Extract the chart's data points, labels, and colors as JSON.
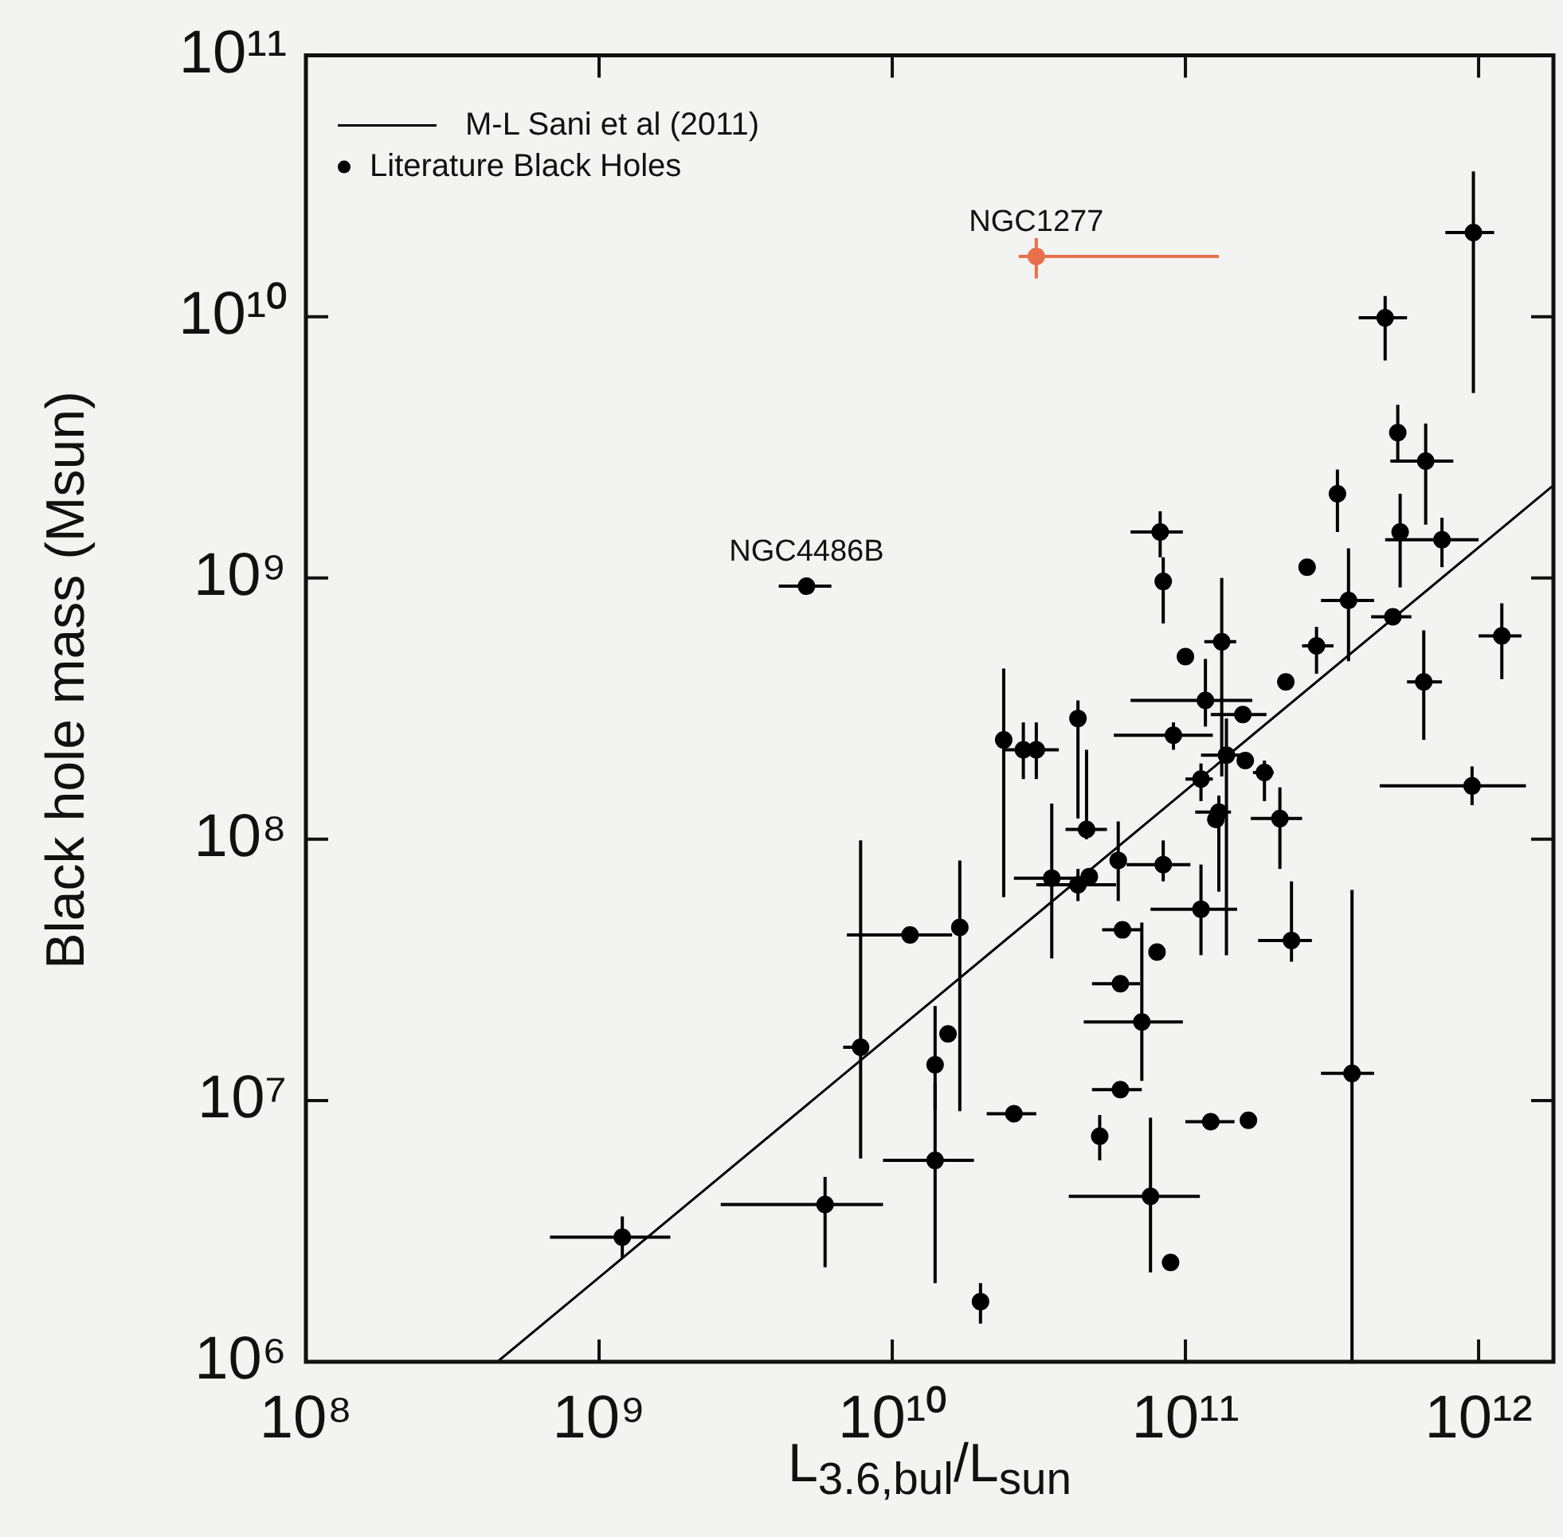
{
  "chart_data": {
    "type": "scatter",
    "xlabel": "L$_{3.6,bul}$/L$_{sun}$",
    "ylabel": "Black hole mass (Msun)",
    "log": "xy",
    "grid": false,
    "legend": "top left",
    "xlim": [
      100000000.0,
      1800000000000.0
    ],
    "ylim": [
      1000000.0,
      100000000000.0
    ],
    "xticks": [
      {
        "value": 100000000.0,
        "label": "10⁸"
      },
      {
        "value": 1000000000.0,
        "label": "10⁹"
      },
      {
        "value": 10000000000.0,
        "label": "10¹⁰"
      },
      {
        "value": 100000000000.0,
        "label": "10¹¹"
      },
      {
        "value": 1000000000000.0,
        "label": "10¹²"
      }
    ],
    "yticks": [
      {
        "value": 1000000.0,
        "label": "10⁶"
      },
      {
        "value": 10000000.0,
        "label": "10⁷"
      },
      {
        "value": 100000000.0,
        "label": "10⁸"
      },
      {
        "value": 1000000000.0,
        "label": "10⁹"
      },
      {
        "value": 10000000000.0,
        "label": "10¹⁰"
      },
      {
        "value": 100000000000.0,
        "label": "10¹¹"
      }
    ],
    "annotations": [
      {
        "text": "NGC1277",
        "x": 31000000000.0,
        "y": 17000000000.0
      },
      {
        "text": "NGC4486B",
        "x": 5100000000.0,
        "y": 930000000.0
      }
    ],
    "series": [
      {
        "name": "M-L Sani et al (2011)",
        "type": "line",
        "line_style": "solid",
        "marker": "none",
        "color": "#000000",
        "x": [
          450000000.0,
          1780000000000.0
        ],
        "values": [
          1000000.0,
          2240000000.0
        ]
      },
      {
        "name": "Literature Black Holes",
        "marker": "circle",
        "color": "#000000",
        "x": [
          960000000000.0,
          480000000000.0,
          530000000000.0,
          660000000000.0,
          330000000000.0,
          540000000000.0,
          750000000000.0,
          82000000000.0,
          84000000000.0,
          260000000000.0,
          360000000000.0,
          510000000000.0,
          1200000000000.0,
          650000000000.0,
          950000000000.0,
          280000000000.0,
          220000000000.0,
          133000000000.0,
          100000000000.0,
          117000000000.0,
          157000000000.0,
          91000000000.0,
          138000000000.0,
          160000000000.0,
          186000000000.0,
          113000000000.0,
          130000000000.0,
          127000000000.0,
          210000000000.0,
          43000000000.0,
          46000000000.0,
          24000000000.0,
          28000000000.0,
          31000000000.0,
          35000000000.0,
          43000000000.0,
          47000000000.0,
          59000000000.0,
          84000000000.0,
          113000000000.0,
          230000000000.0,
          61000000000.0,
          80000000000.0,
          17000000000.0,
          11500000000.0,
          7800000000.0,
          15500000000.0,
          14000000000.0,
          14000000000.0,
          5900000000.0,
          1200000000.0,
          20000000000.0,
          60000000000.0,
          71000000000.0,
          60000000000.0,
          26000000000.0,
          51000000000.0,
          76000000000.0,
          89000000000.0,
          122000000000.0,
          164000000000.0,
          370000000000.0,
          5100000000.0
        ],
        "values": [
          21000000000.0,
          9900000000.0,
          3600000000.0,
          2800000000.0,
          2100000000.0,
          1500000000.0,
          1400000000.0,
          1500000000.0,
          970000000.0,
          1100000000.0,
          820000000.0,
          710000000.0,
          600000000.0,
          400000000.0,
          160000000.0,
          550000000.0,
          400000000.0,
          570000000.0,
          500000000.0,
          340000000.0,
          300000000.0,
          250000000.0,
          210000000.0,
          200000000.0,
          180000000.0,
          170000000.0,
          127000000.0,
          119000000.0,
          120000000.0,
          290000000.0,
          109000000.0,
          240000000.0,
          220000000.0,
          220000000.0,
          71000000.0,
          67000000.0,
          72000000.0,
          83000000.0,
          80000000.0,
          54000000.0,
          41000000.0,
          45000000.0,
          37000000.0,
          46000000.0,
          43000000.0,
          16000000.0,
          18000000.0,
          13700000.0,
          5900000.0,
          4000000.0,
          3000000.0,
          1700000.0,
          28000000.0,
          20000000.0,
          11000000.0,
          8900000.0,
          7300000.0,
          4300000.0,
          2400000.0,
          8300000.0,
          8400000.0,
          12700000.0,
          930000000.0
        ],
        "xerrors": [
          [
            770000000000.0,
            1130000000000.0
          ],
          [
            390000000000.0,
            570000000000.0
          ],
          null,
          [
            500000000000.0,
            820000000000.0
          ],
          null,
          null,
          [
            480000000000.0,
            1000000000000.0
          ],
          [
            65000000000.0,
            98000000000.0
          ],
          null,
          null,
          [
            290000000000.0,
            440000000000.0
          ],
          [
            430000000000.0,
            590000000000.0
          ],
          [
            1000000000000.0,
            1400000000000.0
          ],
          [
            570000000000.0,
            750000000000.0
          ],
          [
            460000000000.0,
            1450000000000.0
          ],
          [
            250000000000.0,
            320000000000.0
          ],
          null,
          [
            116000000000.0,
            149000000000.0
          ],
          null,
          [
            65000000000.0,
            169000000000.0
          ],
          [
            122000000000.0,
            189000000000.0
          ],
          [
            57000000000.0,
            124000000000.0
          ],
          [
            113000000000.0,
            164000000000.0
          ],
          null,
          [
            170000000000.0,
            200000000000.0
          ],
          [
            100000000000.0,
            124000000000.0
          ],
          [
            108000000000.0,
            143000000000.0
          ],
          null,
          [
            167000000000.0,
            250000000000.0
          ],
          null,
          [
            39000000000.0,
            54000000000.0
          ],
          null,
          null,
          [
            24000000000.0,
            37000000000.0
          ],
          [
            26000000000.0,
            42000000000.0
          ],
          [
            31000000000.0,
            58000000000.0
          ],
          null,
          null,
          [
            63000000000.0,
            104000000000.0
          ],
          [
            76000000000.0,
            150000000000.0
          ],
          [
            177000000000.0,
            270000000000.0
          ],
          [
            52000000000.0,
            71000000000.0
          ],
          null,
          null,
          [
            7000000000.0,
            16000000000.0
          ],
          [
            6800000000.0,
            8300000000.0
          ],
          null,
          null,
          [
            9300000000.0,
            19000000000.0
          ],
          [
            2600000000.0,
            9300000000.0
          ],
          [
            680000000.0,
            1750000000.0
          ],
          null,
          [
            48000000000.0,
            70000000000.0
          ],
          [
            45000000000.0,
            98000000000.0
          ],
          [
            48000000000.0,
            71000000000.0
          ],
          [
            21000000000.0,
            31000000000.0
          ],
          null,
          [
            40000000000.0,
            112000000000.0
          ],
          null,
          [
            100000000000.0,
            147000000000.0
          ],
          null,
          [
            290000000000.0,
            440000000000.0
          ],
          [
            4100000000.0,
            6200000000.0
          ]
        ],
        "errors": [
          [
            5100000000.0,
            36000000000.0
          ],
          [
            6800000000.0,
            12000000000.0
          ],
          [
            2800000000.0,
            4600000000.0
          ],
          [
            1600000000.0,
            3900000000.0
          ],
          [
            1500000000.0,
            2600000000.0
          ],
          [
            920000000.0,
            2100000000.0
          ],
          [
            1100000000.0,
            1700000000.0
          ],
          [
            1200000000.0,
            1800000000.0
          ],
          [
            670000000.0,
            1200000000.0
          ],
          null,
          [
            480000000.0,
            1300000000.0
          ],
          null,
          [
            410000000.0,
            800000000.0
          ],
          [
            240000000.0,
            630000000.0
          ],
          [
            135000000.0,
            190000000.0
          ],
          [
            430000000.0,
            650000000.0
          ],
          null,
          [
            174000000.0,
            1000000000.0
          ],
          null,
          [
            270000000.0,
            490000000.0
          ],
          null,
          [
            220000000.0,
            280000000.0
          ],
          [
            36000000.0,
            290000000.0
          ],
          null,
          [
            140000000.0,
            200000000.0
          ],
          [
            140000000.0,
            195000000.0
          ],
          [
            63000000.0,
            147000000.0
          ],
          null,
          [
            77000000.0,
            158000000.0
          ],
          [
            120000000.0,
            340000000.0
          ],
          [
            100000000.0,
            220000000.0
          ],
          [
            60000000.0,
            450000000.0
          ],
          [
            170000000.0,
            280000000.0
          ],
          [
            170000000.0,
            280000000.0
          ],
          [
            35000000.0,
            137000000.0
          ],
          [
            58000000.0,
            77000000.0
          ],
          null,
          [
            58000000.0,
            117000000.0
          ],
          [
            69000000.0,
            99000000.0
          ],
          [
            36000000.0,
            80000000.0
          ],
          [
            34000000.0,
            69000000.0
          ],
          null,
          null,
          [
            9100000.0,
            83000000.0
          ],
          null,
          [
            6000000.0,
            99000000.0
          ],
          null,
          [
            9200000.0,
            23000000.0
          ],
          [
            2000000.0,
            11700000.0
          ],
          [
            2300000.0,
            5100000.0
          ],
          [
            2500000.0,
            3600000.0
          ],
          [
            1400000.0,
            2000000.0
          ],
          null,
          [
            11900000.0,
            48000000.0
          ],
          null,
          null,
          [
            5900000.0,
            8800000.0
          ],
          [
            2200000.0,
            8600000.0
          ],
          null,
          null,
          null,
          [
            1000000.0,
            64000000.0
          ],
          [
            870000000.0,
            1000000000.0
          ]
        ]
      },
      {
        "marker": "circle",
        "color": "#e8704a",
        "x": [
          31000000000.0
        ],
        "values": [
          17000000000.0
        ],
        "xerrors": [
          [
            27000000000.0,
            130000000000.0
          ]
        ],
        "errors": [
          [
            14000000000.0,
            20000000000.0
          ]
        ]
      }
    ]
  }
}
